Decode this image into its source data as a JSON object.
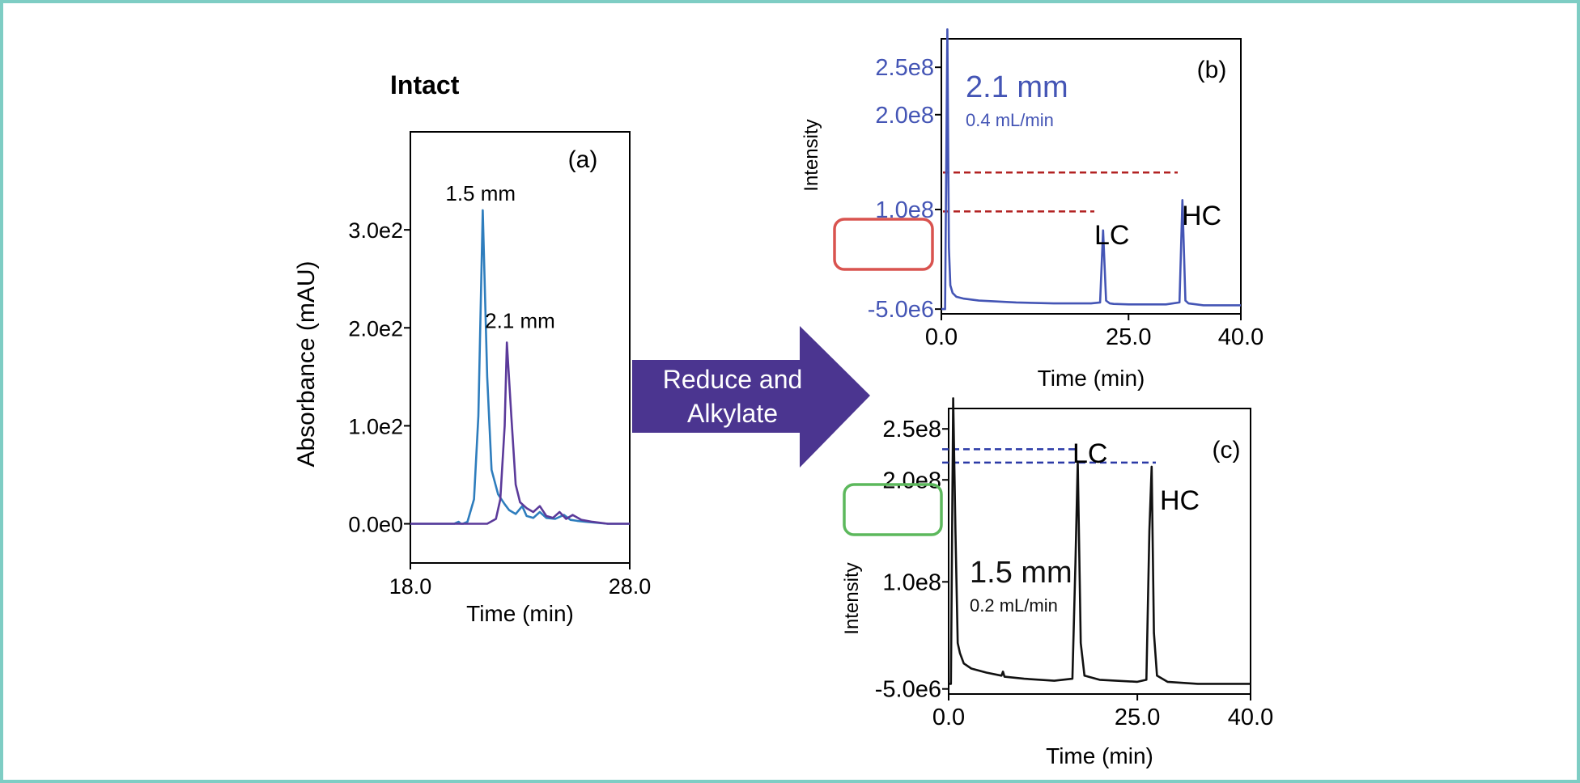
{
  "colors": {
    "frame_border": "#7ecdc4",
    "blue_trace": "#2e7dbd",
    "purple_trace": "#5b3a9a",
    "chart_b": "#4455b5",
    "chart_c": "#111111",
    "arrow": "#4b3590",
    "red_dash": "#b22222",
    "blue_dash": "#2b3aa6",
    "red_box": "#d9534f",
    "green_box": "#5cb85c"
  },
  "arrow": {
    "line1": "Reduce and",
    "line2": "Alkylate"
  },
  "chart_data": [
    {
      "id": "a",
      "type": "line",
      "title": "Intact",
      "panel_label": "(a)",
      "xlabel": "Time (min)",
      "ylabel": "Absorbance (mAU)",
      "xlim": [
        18.0,
        28.0
      ],
      "ylim": [
        -40,
        400
      ],
      "x_ticks": [
        18.0,
        28.0
      ],
      "x_tick_labels": [
        "18.0",
        "28.0"
      ],
      "y_ticks": [
        0,
        100,
        200,
        300
      ],
      "y_tick_labels": [
        "0.0e0",
        "1.0e2",
        "2.0e2",
        "3.0e2"
      ],
      "annotations": [
        {
          "text": "1.5 mm",
          "x": 21.2,
          "y": 330
        },
        {
          "text": "2.1 mm",
          "x": 23.0,
          "y": 200
        }
      ],
      "series": [
        {
          "name": "1.5 mm",
          "color": "#2e7dbd",
          "x": [
            18.0,
            20.0,
            20.2,
            20.3,
            20.4,
            20.6,
            20.9,
            21.1,
            21.3,
            21.5,
            21.7,
            22.0,
            22.3,
            22.5,
            22.8,
            23.1,
            23.3,
            23.6,
            23.9,
            24.2,
            24.6,
            25.0,
            25.3,
            25.6,
            26.0,
            27.0,
            28.0
          ],
          "y": [
            0,
            0,
            2,
            0,
            0,
            2,
            25,
            110,
            320,
            150,
            55,
            30,
            20,
            14,
            10,
            18,
            8,
            6,
            12,
            6,
            5,
            9,
            4,
            3,
            2,
            0,
            0
          ]
        },
        {
          "name": "2.1 mm",
          "color": "#5b3a9a",
          "x": [
            18.0,
            21.0,
            21.5,
            21.9,
            22.1,
            22.3,
            22.4,
            22.6,
            22.8,
            23.0,
            23.3,
            23.6,
            23.9,
            24.2,
            24.5,
            24.8,
            25.1,
            25.4,
            25.8,
            26.3,
            27.0,
            28.0
          ],
          "y": [
            0,
            0,
            0,
            5,
            25,
            100,
            185,
            110,
            40,
            22,
            16,
            12,
            18,
            8,
            6,
            12,
            5,
            9,
            4,
            2,
            0,
            0
          ]
        }
      ]
    },
    {
      "id": "b",
      "type": "line",
      "panel_label": "(b)",
      "xlabel": "Time (min)",
      "ylabel": "Intensity",
      "xlim": [
        0,
        40
      ],
      "ylim": [
        -10000000,
        280000000
      ],
      "x_ticks": [
        0,
        25,
        40
      ],
      "x_tick_labels": [
        "0.0",
        "25.0",
        "40.0"
      ],
      "y_ticks": [
        -5000000,
        100000000,
        200000000,
        250000000
      ],
      "y_tick_labels": [
        "-5.0e6",
        "1.0e8",
        "2.0e8",
        "2.5e8"
      ],
      "inset_title": "2.1 mm",
      "inset_subtitle": "0.4 mL/min",
      "peak_labels": [
        "LC",
        "HC"
      ],
      "reference_lines": [
        {
          "label": "LC",
          "y": 98000000
        },
        {
          "label": "HC",
          "y": 139000000
        }
      ],
      "series": [
        {
          "name": "2.1 mm",
          "color": "#4455b5",
          "x": [
            0,
            0.5,
            0.8,
            1.0,
            1.2,
            1.5,
            2.0,
            3.0,
            5.0,
            10.0,
            15.0,
            20.0,
            21.2,
            21.6,
            22.0,
            22.5,
            23.0,
            25.0,
            30.0,
            31.8,
            32.2,
            32.6,
            33.0,
            35.0,
            40.0
          ],
          "y": [
            -5000000,
            -5000000,
            290000000,
            60000000,
            20000000,
            12000000,
            8000000,
            6000000,
            4000000,
            2000000,
            1000000,
            1000000,
            2000000,
            78000000,
            4000000,
            1000000,
            500000,
            0,
            0,
            2000000,
            110000000,
            4000000,
            1000000,
            -1000000,
            -1000000
          ]
        }
      ]
    },
    {
      "id": "c",
      "type": "line",
      "panel_label": "(c)",
      "xlabel": "Time (min)",
      "ylabel": "Intensity",
      "xlim": [
        0,
        40
      ],
      "ylim": [
        -10000000,
        270000000
      ],
      "x_ticks": [
        0,
        25,
        40
      ],
      "x_tick_labels": [
        "0.0",
        "25.0",
        "40.0"
      ],
      "y_ticks": [
        -5000000,
        100000000,
        200000000,
        250000000
      ],
      "y_tick_labels": [
        "-5.0e6",
        "1.0e8",
        "2.0e8",
        "2.5e8"
      ],
      "inset_title": "1.5 mm",
      "inset_subtitle": "0.2 mL/min",
      "peak_labels": [
        "LC",
        "HC"
      ],
      "reference_lines": [
        {
          "label": "LC",
          "y": 230000000
        },
        {
          "label": "HC",
          "y": 217000000
        }
      ],
      "series": [
        {
          "name": "1.5 mm",
          "color": "#111111",
          "x": [
            0,
            0.3,
            0.6,
            0.9,
            1.2,
            1.5,
            2.0,
            3.0,
            5.0,
            7.0,
            7.2,
            7.4,
            10.0,
            14.0,
            16.4,
            16.8,
            17.1,
            17.5,
            18.0,
            20.0,
            25.0,
            26.2,
            26.6,
            26.9,
            27.2,
            27.6,
            29.0,
            33.0,
            40.0
          ],
          "y": [
            0,
            0,
            280000000,
            150000000,
            40000000,
            30000000,
            20000000,
            15000000,
            11000000,
            8000000,
            12000000,
            7000000,
            5000000,
            3000000,
            5000000,
            120000000,
            218000000,
            40000000,
            8000000,
            4000000,
            2000000,
            4000000,
            150000000,
            213000000,
            50000000,
            8000000,
            2000000,
            0,
            0
          ]
        }
      ]
    }
  ]
}
